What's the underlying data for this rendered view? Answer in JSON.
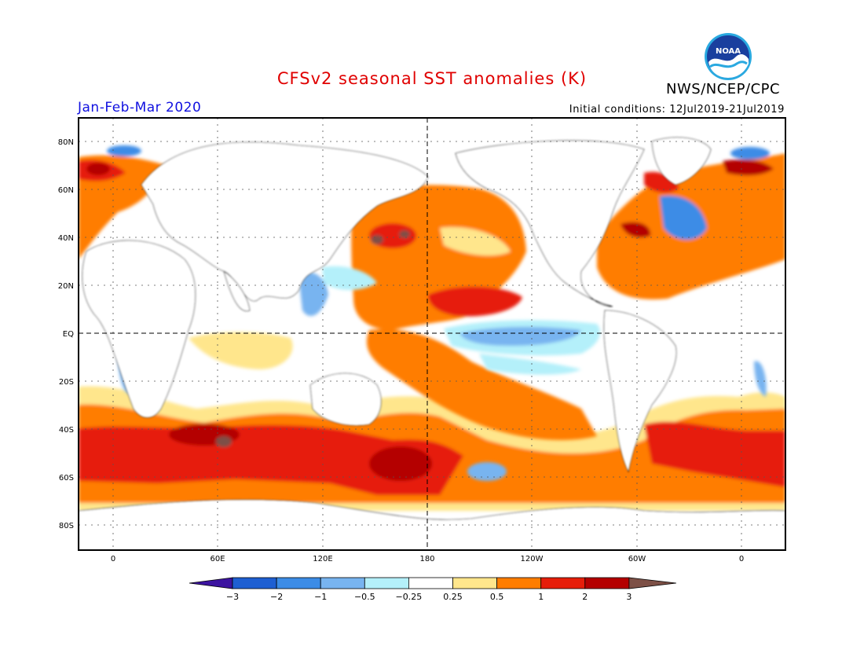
{
  "title": "CFSv2 seasonal SST anomalies (K)",
  "agency": "NWS/NCEP/CPC",
  "logo_text": "NOAA",
  "period": "Jan-Feb-Mar 2020",
  "initial_conditions": "Initial conditions: 12Jul2019-21Jul2019",
  "lat_labels": [
    "80N",
    "60N",
    "40N",
    "20N",
    "EQ",
    "20S",
    "40S",
    "60S",
    "80S"
  ],
  "lon_labels": [
    "0",
    "60E",
    "120E",
    "180",
    "120W",
    "60W",
    "0"
  ],
  "colorbar": {
    "labels": [
      "-3",
      "-2",
      "-1",
      "-0.5",
      "-0.25",
      "0.25",
      "0.5",
      "1",
      "2",
      "3"
    ],
    "colors": [
      "#3c14a0",
      "#1e5fd2",
      "#3c8ce6",
      "#78b4f0",
      "#b4f0fa",
      "#ffffff",
      "#ffe68c",
      "#ff7d00",
      "#e61e0a",
      "#b40000",
      "#7d5046"
    ]
  },
  "colors": {
    "title": "#e00000",
    "period": "#1010e0"
  }
}
